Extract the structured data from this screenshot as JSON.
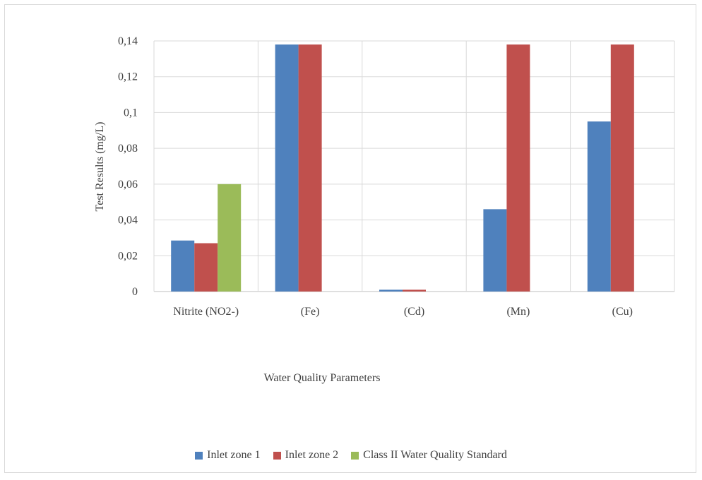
{
  "chart_data": {
    "type": "bar",
    "title": "",
    "xlabel": "Water Quality Parameters",
    "ylabel": "Test Results (mg/L)",
    "categories": [
      "Nitrite (NO2-)",
      "(Fe)",
      "(Cd)",
      "(Mn)",
      "(Cu)"
    ],
    "series": [
      {
        "name": "Inlet zone 1",
        "color": "#4f81bd",
        "values": [
          0.0285,
          0.138,
          0.001,
          0.046,
          0.095
        ]
      },
      {
        "name": "Inlet zone 2",
        "color": "#c0504d",
        "values": [
          0.027,
          0.138,
          0.001,
          0.138,
          0.138
        ]
      },
      {
        "name": "Class II Water Quality Standard",
        "color": "#9bbb59",
        "values": [
          0.06,
          0,
          0,
          0,
          0
        ]
      }
    ],
    "ylim": [
      0,
      0.14
    ],
    "yticks": [
      0,
      0.02,
      0.04,
      0.06,
      0.08,
      0.1,
      0.12,
      0.14
    ],
    "ytick_labels": [
      "0",
      "0,02",
      "0,04",
      "0,06",
      "0,08",
      "0,1",
      "0,12",
      "0,14"
    ],
    "grid": true,
    "legend_position": "bottom"
  }
}
